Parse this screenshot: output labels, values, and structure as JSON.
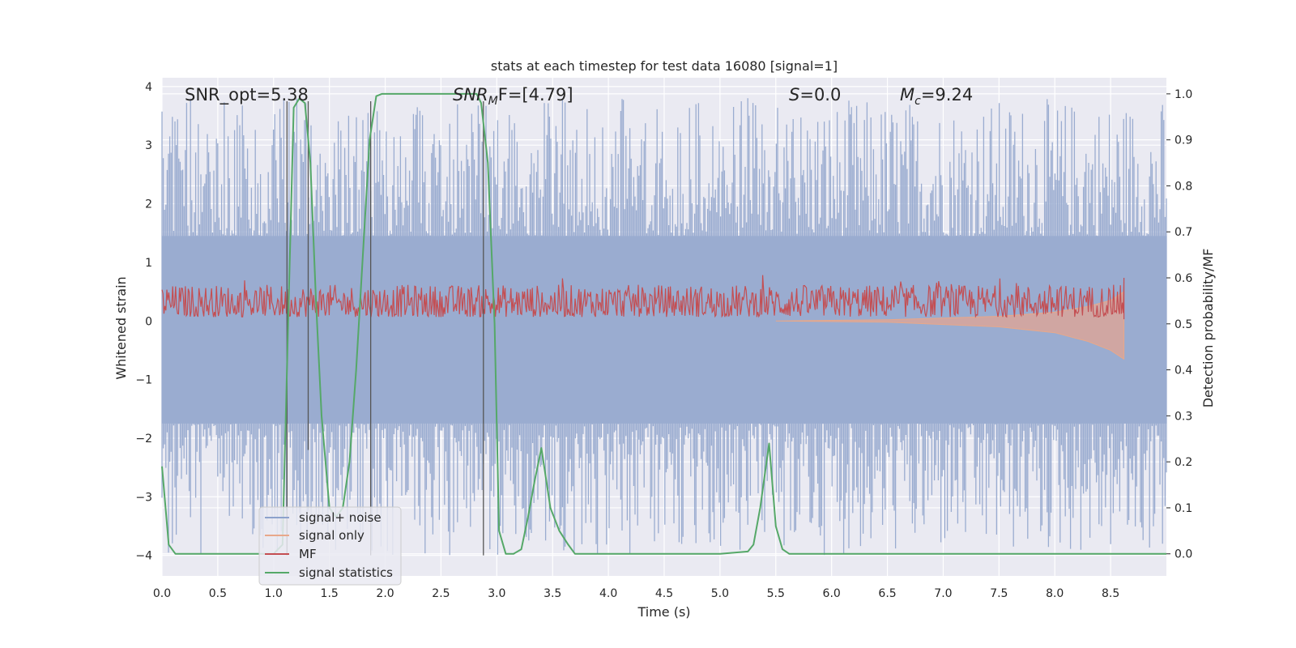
{
  "chart_data": {
    "type": "line",
    "title": "stats at each timestep for test data 16080 [signal=1]",
    "xlabel": "Time (s)",
    "ylabel": "Whitened strain",
    "y2label": "Detection probability/MF",
    "xlim": [
      0.0,
      9.0
    ],
    "ylim": [
      -4.35,
      4.15
    ],
    "y2lim": [
      -0.048,
      1.035
    ],
    "xticks": [
      "0.0",
      "0.5",
      "1.0",
      "1.5",
      "2.0",
      "2.5",
      "3.0",
      "3.5",
      "4.0",
      "4.5",
      "5.0",
      "5.5",
      "6.0",
      "6.5",
      "7.0",
      "7.5",
      "8.0",
      "8.5"
    ],
    "yticks": [
      "4",
      "3",
      "2",
      "1",
      "0",
      "−1",
      "−2",
      "−3",
      "−4"
    ],
    "y2ticks": [
      "1.0",
      "0.9",
      "0.8",
      "0.7",
      "0.6",
      "0.5",
      "0.4",
      "0.3",
      "0.2",
      "0.1",
      "0.0"
    ],
    "annotations": {
      "snr_opt": "SNR_opt=5.38",
      "snr_mf_main": "SNR",
      "snr_mf_sub": "M",
      "snr_mf_rest": "F=[4.79]",
      "s_main": "S",
      "s_rest": "=0.0",
      "mc_main": "M",
      "mc_sub": "c",
      "mc_rest": "=9.24"
    },
    "legend": {
      "location": "lower-left",
      "items": [
        {
          "label": "signal+ noise",
          "color": "#8da2cc"
        },
        {
          "label": "signal only",
          "color": "#e8a88a"
        },
        {
          "label": "MF",
          "color": "#c44e52"
        },
        {
          "label": "signal statistics",
          "color": "#55a868"
        }
      ]
    },
    "vlines_x": [
      1.12,
      1.31,
      1.87,
      2.88
    ],
    "vlines_y": [
      [
        -4.0,
        3.75
      ],
      [
        -2.2,
        3.75
      ],
      [
        -4.0,
        3.75
      ],
      [
        -4.0,
        3.75
      ]
    ],
    "signal_noise": {
      "x_end": 9.0,
      "band_low": -1.75,
      "band_high": 1.45,
      "peak_max": 3.8,
      "trough_min": -4.0
    },
    "signal_only": {
      "x": [
        5.5,
        6.5,
        7.5,
        8.0,
        8.3,
        8.5,
        8.62
      ],
      "y_low": [
        0.0,
        -0.02,
        -0.1,
        -0.2,
        -0.35,
        -0.5,
        -0.65
      ],
      "y_high": [
        0.0,
        0.02,
        0.08,
        0.15,
        0.25,
        0.35,
        0.5
      ]
    },
    "mf": {
      "x_end": 8.62,
      "center": 0.27,
      "amplitude": 0.33,
      "spike_x": 8.62,
      "spike_y": 1.0
    },
    "signal_statistics": {
      "x": [
        0.0,
        0.06,
        0.12,
        0.2,
        0.5,
        1.0,
        1.08,
        1.13,
        1.18,
        1.23,
        1.28,
        1.33,
        1.38,
        1.43,
        1.5,
        1.56,
        1.62,
        1.68,
        1.74,
        1.8,
        1.86,
        1.92,
        1.97,
        2.02,
        2.1,
        2.5,
        2.82,
        2.86,
        2.92,
        2.98,
        3.02,
        3.08,
        3.15,
        3.22,
        3.28,
        3.34,
        3.4,
        3.48,
        3.56,
        3.64,
        3.7,
        3.78,
        4.0,
        5.0,
        5.25,
        5.3,
        5.36,
        5.44,
        5.5,
        5.56,
        5.62,
        5.7,
        5.8,
        6.5,
        9.0
      ],
      "y": [
        0.19,
        0.02,
        0.0,
        0.0,
        0.0,
        0.0,
        0.02,
        0.5,
        0.97,
        0.99,
        0.98,
        0.85,
        0.55,
        0.3,
        0.1,
        0.08,
        0.1,
        0.2,
        0.4,
        0.65,
        0.9,
        0.995,
        1.0,
        1.0,
        1.0,
        1.0,
        1.0,
        0.98,
        0.85,
        0.5,
        0.05,
        0.0,
        0.0,
        0.01,
        0.08,
        0.16,
        0.23,
        0.1,
        0.05,
        0.02,
        0.0,
        0.0,
        0.0,
        0.0,
        0.005,
        0.02,
        0.1,
        0.24,
        0.06,
        0.01,
        0.0,
        0.0,
        0.0,
        0.0,
        0.0
      ]
    }
  }
}
